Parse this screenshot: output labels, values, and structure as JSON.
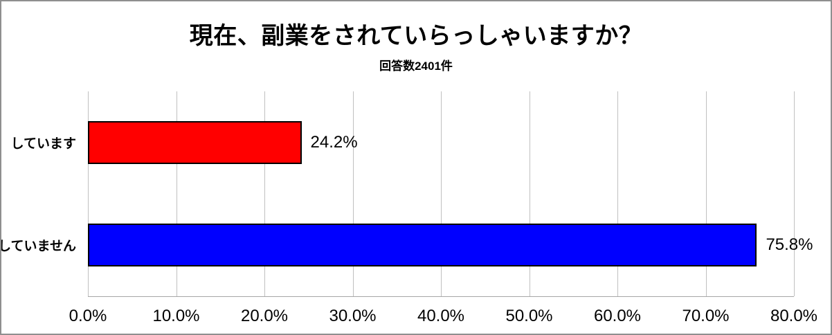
{
  "chart_data": {
    "type": "bar",
    "orientation": "horizontal",
    "title": "現在、副業をされていらっしゃいますか？",
    "subtitle": "回答数2401件",
    "categories": [
      "しています",
      "していません"
    ],
    "values": [
      24.2,
      75.8
    ],
    "value_labels": [
      "24.2%",
      "75.8%"
    ],
    "bar_colors": [
      "#ff0000",
      "#0000ff"
    ],
    "xlabel": "",
    "ylabel": "",
    "xlim": [
      0,
      80
    ],
    "x_tick_values": [
      0,
      10,
      20,
      30,
      40,
      50,
      60,
      70,
      80
    ],
    "x_tick_labels": [
      "0.0%",
      "10.0%",
      "20.0%",
      "30.0%",
      "40.0%",
      "50.0%",
      "60.0%",
      "70.0%",
      "80.0%"
    ],
    "grid": true,
    "legend_position": "none"
  },
  "colors": {
    "bar_red": "#ff0000",
    "bar_blue": "#0000ff",
    "bar_border": "#000000",
    "gridline": "#c0c0c0",
    "axis_line": "#a6a6a6",
    "outer_border": "#8f8f8f",
    "text": "#000000",
    "background": "#ffffff"
  }
}
